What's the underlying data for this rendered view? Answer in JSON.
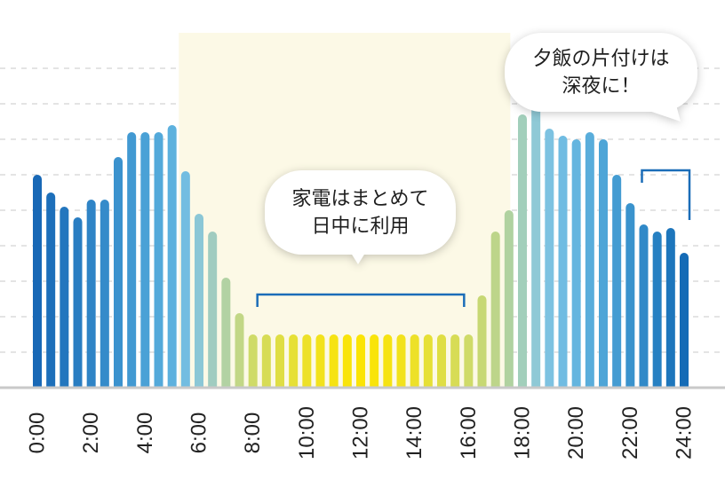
{
  "chart_data": {
    "type": "bar",
    "x": [
      0,
      0.5,
      1,
      1.5,
      2,
      2.5,
      3,
      3.5,
      4,
      4.5,
      5,
      5.5,
      6,
      6.5,
      7,
      7.5,
      8,
      8.5,
      9,
      9.5,
      10,
      10.5,
      11,
      11.5,
      12,
      12.5,
      13,
      13.5,
      14,
      14.5,
      15,
      15.5,
      16,
      16.5,
      17,
      17.5,
      18,
      18.5,
      19,
      19.5,
      20,
      20.5,
      21,
      21.5,
      22,
      22.5,
      23,
      23.5,
      24
    ],
    "values": [
      6.0,
      5.5,
      5.1,
      4.8,
      5.3,
      5.3,
      6.5,
      7.2,
      7.2,
      7.2,
      7.4,
      6.1,
      4.9,
      4.4,
      3.1,
      2.1,
      1.5,
      1.5,
      1.5,
      1.5,
      1.5,
      1.5,
      1.5,
      1.5,
      1.5,
      1.5,
      1.5,
      1.5,
      1.5,
      1.5,
      1.5,
      1.5,
      1.5,
      2.6,
      4.4,
      5.0,
      7.7,
      8.0,
      7.3,
      7.1,
      7.0,
      7.2,
      7.0,
      6.0,
      5.2,
      4.6,
      4.4,
      4.5,
      3.8
    ],
    "bar_colors": [
      "#1868b6",
      "#1d6fba",
      "#2376be",
      "#297dc2",
      "#2f84c6",
      "#358bca",
      "#3b92ce",
      "#4299d2",
      "#4aa1d6",
      "#53a9da",
      "#5db1de",
      "#72bde1",
      "#8bc7d6",
      "#a0ccc0",
      "#b2d2a3",
      "#c2d786",
      "#cfdb68",
      "#d7dc55",
      "#dfde44",
      "#e6e035",
      "#ede128",
      "#f2e21c",
      "#f6e312",
      "#f9e40a",
      "#fbe405",
      "#f9e40a",
      "#f6e312",
      "#f2e21c",
      "#ede128",
      "#e6e035",
      "#dfde44",
      "#d7dc55",
      "#cfdb68",
      "#c7d873",
      "#bdd58a",
      "#b0d2a0",
      "#a2cfbb",
      "#8fc9d6",
      "#7dc2e1",
      "#70bce2",
      "#64b5df",
      "#59addb",
      "#4ea5d7",
      "#449cd2",
      "#3a93cd",
      "#3089c8",
      "#2680c2",
      "#1d76bc",
      "#156bb6"
    ],
    "xlim": [
      0,
      24
    ],
    "ylim": [
      0,
      10
    ],
    "grid": true,
    "xticks": [
      0,
      2,
      4,
      6,
      8,
      10,
      12,
      14,
      16,
      18,
      20,
      22,
      24
    ],
    "xtick_labels": [
      "0:00",
      "2:00",
      "4:00",
      "6:00",
      "8:00",
      "10:00",
      "12:00",
      "14:00",
      "16:00",
      "18:00",
      "20:00",
      "22:00",
      "24:00"
    ],
    "highlight_range": [
      5.25,
      17.55
    ],
    "annotations": [
      {
        "lines": [
          "家電はまとめて",
          "日中に利用"
        ],
        "bracket": [
          8,
          16
        ]
      },
      {
        "lines": [
          "夕飯の片付けは",
          "深夜に！"
        ],
        "bracket": [
          22.5,
          24
        ]
      }
    ]
  },
  "colors": {
    "highlight": "#fcf9e6",
    "grid": "#d3d3d3",
    "axis": "#c9c9c9",
    "bracket": "#1b6db8",
    "label_text": "#222222",
    "bubble": "#ffffff"
  }
}
